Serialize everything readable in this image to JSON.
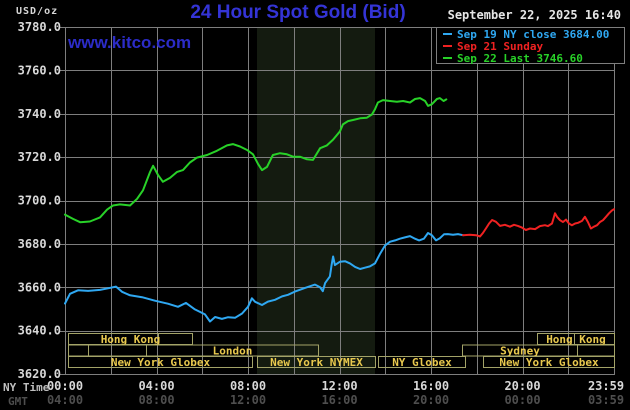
{
  "header": {
    "unit_label": "USD/oz",
    "title": "24 Hour Spot Gold (Bid)",
    "datetime": "September 22, 2025 16:40",
    "watermark": "www.kitco.com"
  },
  "legend": {
    "entries": [
      {
        "label": "Sep 19 NY close 3684.00",
        "color": "#2fa8f2"
      },
      {
        "label": "Sep 21 Sunday",
        "color": "#f02222"
      },
      {
        "label": "Sep 22 Last 3746.60",
        "color": "#28d228"
      }
    ]
  },
  "axes": {
    "y_labels": [
      "3780.0",
      "3760.0",
      "3740.0",
      "3720.0",
      "3700.0",
      "3680.0",
      "3660.0",
      "3640.0",
      "3620.0"
    ],
    "x_row1_label": "NY Time",
    "x_row2_label": "GMT",
    "x_row1_values": [
      "00:00",
      "04:00",
      "08:00",
      "12:00",
      "16:00",
      "20:00",
      "23:59"
    ],
    "x_row2_values": [
      "04:00",
      "08:00",
      "12:00",
      "16:00",
      "20:00",
      "00:00",
      "03:59"
    ]
  },
  "colors": {
    "background": "#000000",
    "grid": "#7e7e7e",
    "highlight_band": "#141b10",
    "session_border": "#a3a368",
    "session_text": "#e9c94e",
    "axis_text": "#d8d8d8",
    "gmt_text": "#4e4e4e"
  },
  "sessions": {
    "rows": [
      {
        "boxes": [
          {
            "label": "Hong Kong",
            "start": 0.13,
            "end": 5.55,
            "dividers": [
              4.07
            ]
          },
          {
            "label": "Hong Kong",
            "start": 20.63,
            "end": 24,
            "dividers": [
              22.25
            ]
          }
        ]
      },
      {
        "boxes": [
          {
            "label": "",
            "start": 0.13,
            "end": 1.01,
            "dividers": []
          },
          {
            "label": "",
            "start": 1.01,
            "end": 3.54,
            "dividers": []
          },
          {
            "label": "London",
            "start": 3.54,
            "end": 11.06,
            "dividers": []
          },
          {
            "label": "Sydney",
            "start": 17.36,
            "end": 22.38,
            "dividers": []
          },
          {
            "label": "",
            "start": 22.38,
            "end": 24,
            "dividers": []
          }
        ]
      },
      {
        "boxes": [
          {
            "label": "New York Globex",
            "start": 0.13,
            "end": 8.17,
            "dividers": []
          },
          {
            "label": "New York NYMEX",
            "start": 8.39,
            "end": 13.55,
            "dividers": []
          },
          {
            "label": "NY Globex",
            "start": 13.68,
            "end": 17.49,
            "dividers": []
          },
          {
            "label": "New York Globex",
            "start": 18.27,
            "end": 24,
            "dividers": []
          }
        ]
      }
    ]
  },
  "chart_data": {
    "type": "line",
    "title": "24 Hour Spot Gold (Bid)",
    "ylabel": "USD/oz",
    "x_unit": "hours_ny_time",
    "x_range": [
      0,
      24
    ],
    "y_range": [
      3620,
      3780
    ],
    "y_tick_step": 20,
    "x_gridline_step_hours": 2,
    "x_label_hours": [
      0,
      4,
      8,
      12,
      16,
      20,
      24
    ],
    "grid": true,
    "legend_position": "top-right",
    "highlight_band_hours": [
      8.39,
      13.55
    ],
    "series": [
      {
        "name": "Sep 19 NY close",
        "color": "#2fa8f2",
        "close": 3684.0,
        "points": [
          [
            0,
            3652.5
          ],
          [
            0.22,
            3657.0
          ],
          [
            0.57,
            3658.6
          ],
          [
            1.01,
            3658.3
          ],
          [
            1.53,
            3658.8
          ],
          [
            1.88,
            3659.5
          ],
          [
            2.23,
            3660.3
          ],
          [
            2.49,
            3657.9
          ],
          [
            2.84,
            3656.3
          ],
          [
            3.37,
            3655.4
          ],
          [
            3.93,
            3653.8
          ],
          [
            4.5,
            3652.4
          ],
          [
            4.94,
            3651.0
          ],
          [
            5.29,
            3652.8
          ],
          [
            5.68,
            3649.8
          ],
          [
            6.12,
            3647.5
          ],
          [
            6.34,
            3644.2
          ],
          [
            6.56,
            3646.3
          ],
          [
            6.86,
            3645.4
          ],
          [
            7.13,
            3646.2
          ],
          [
            7.43,
            3645.9
          ],
          [
            7.74,
            3647.9
          ],
          [
            8.0,
            3651.0
          ],
          [
            8.17,
            3654.9
          ],
          [
            8.31,
            3653.3
          ],
          [
            8.61,
            3651.8
          ],
          [
            8.87,
            3653.4
          ],
          [
            9.18,
            3654.2
          ],
          [
            9.49,
            3655.8
          ],
          [
            9.75,
            3656.5
          ],
          [
            10.05,
            3658.0
          ],
          [
            10.49,
            3659.7
          ],
          [
            10.93,
            3661.2
          ],
          [
            11.15,
            3660.0
          ],
          [
            11.27,
            3658.2
          ],
          [
            11.37,
            3661.9
          ],
          [
            11.58,
            3665.0
          ],
          [
            11.65,
            3670.0
          ],
          [
            11.72,
            3674.2
          ],
          [
            11.8,
            3670.2
          ],
          [
            12.02,
            3671.8
          ],
          [
            12.24,
            3672.0
          ],
          [
            12.46,
            3671.0
          ],
          [
            12.68,
            3669.4
          ],
          [
            12.9,
            3668.4
          ],
          [
            13.11,
            3669.0
          ],
          [
            13.33,
            3669.6
          ],
          [
            13.55,
            3671.0
          ],
          [
            13.77,
            3675.4
          ],
          [
            13.99,
            3679.2
          ],
          [
            14.21,
            3681.0
          ],
          [
            14.43,
            3681.6
          ],
          [
            14.64,
            3682.4
          ],
          [
            14.86,
            3683.0
          ],
          [
            15.08,
            3683.6
          ],
          [
            15.3,
            3682.4
          ],
          [
            15.48,
            3681.6
          ],
          [
            15.69,
            3682.4
          ],
          [
            15.87,
            3685.0
          ],
          [
            16.04,
            3684.0
          ],
          [
            16.22,
            3681.6
          ],
          [
            16.39,
            3682.6
          ],
          [
            16.57,
            3684.4
          ],
          [
            16.74,
            3684.5
          ],
          [
            16.96,
            3684.2
          ],
          [
            17.18,
            3684.5
          ],
          [
            17.4,
            3684.0
          ]
        ]
      },
      {
        "name": "Sep 21 Sunday",
        "color": "#f02222",
        "points": [
          [
            17.4,
            3684.0
          ],
          [
            17.7,
            3684.2
          ],
          [
            17.97,
            3684.0
          ],
          [
            18.14,
            3683.4
          ],
          [
            18.27,
            3685.0
          ],
          [
            18.4,
            3687.1
          ],
          [
            18.54,
            3689.4
          ],
          [
            18.67,
            3691.0
          ],
          [
            18.84,
            3690.2
          ],
          [
            19.02,
            3688.3
          ],
          [
            19.23,
            3688.8
          ],
          [
            19.45,
            3687.9
          ],
          [
            19.63,
            3688.8
          ],
          [
            19.8,
            3688.3
          ],
          [
            19.98,
            3687.5
          ],
          [
            20.15,
            3686.4
          ],
          [
            20.33,
            3687.1
          ],
          [
            20.55,
            3686.8
          ],
          [
            20.76,
            3688.2
          ],
          [
            20.98,
            3688.6
          ],
          [
            21.11,
            3688.2
          ],
          [
            21.29,
            3689.4
          ],
          [
            21.42,
            3694.1
          ],
          [
            21.51,
            3692.5
          ],
          [
            21.64,
            3690.9
          ],
          [
            21.77,
            3690.1
          ],
          [
            21.9,
            3691.2
          ],
          [
            22.03,
            3689.4
          ],
          [
            22.16,
            3688.6
          ],
          [
            22.3,
            3689.4
          ],
          [
            22.43,
            3689.7
          ],
          [
            22.6,
            3690.6
          ],
          [
            22.73,
            3692.5
          ],
          [
            22.86,
            3690.1
          ],
          [
            22.99,
            3687.1
          ],
          [
            23.12,
            3687.9
          ],
          [
            23.26,
            3688.6
          ],
          [
            23.39,
            3690.1
          ],
          [
            23.52,
            3690.9
          ],
          [
            23.65,
            3692.5
          ],
          [
            23.78,
            3694.1
          ],
          [
            23.91,
            3695.4
          ],
          [
            24,
            3696.0
          ]
        ]
      },
      {
        "name": "Sep 22 Last",
        "color": "#28d228",
        "last": 3746.6,
        "points": [
          [
            0,
            3693.5
          ],
          [
            0.35,
            3691.5
          ],
          [
            0.66,
            3690.0
          ],
          [
            1.09,
            3690.3
          ],
          [
            1.53,
            3692.2
          ],
          [
            1.84,
            3695.8
          ],
          [
            2.1,
            3697.7
          ],
          [
            2.4,
            3698.2
          ],
          [
            2.84,
            3697.7
          ],
          [
            3.15,
            3700.8
          ],
          [
            3.41,
            3704.7
          ],
          [
            3.72,
            3713.2
          ],
          [
            3.85,
            3716.0
          ],
          [
            4.07,
            3711.7
          ],
          [
            4.28,
            3708.6
          ],
          [
            4.59,
            3710.4
          ],
          [
            4.9,
            3713.2
          ],
          [
            5.16,
            3714.0
          ],
          [
            5.46,
            3717.5
          ],
          [
            5.77,
            3719.8
          ],
          [
            6.21,
            3721.0
          ],
          [
            6.64,
            3722.9
          ],
          [
            7.08,
            3725.4
          ],
          [
            7.34,
            3726.0
          ],
          [
            7.65,
            3724.9
          ],
          [
            7.96,
            3723.3
          ],
          [
            8.22,
            3721.3
          ],
          [
            8.44,
            3716.8
          ],
          [
            8.61,
            3714.0
          ],
          [
            8.83,
            3715.5
          ],
          [
            9.09,
            3721.0
          ],
          [
            9.4,
            3721.8
          ],
          [
            9.7,
            3721.3
          ],
          [
            9.97,
            3720.2
          ],
          [
            10.27,
            3720.2
          ],
          [
            10.58,
            3719.0
          ],
          [
            10.84,
            3718.7
          ],
          [
            11.15,
            3724.1
          ],
          [
            11.45,
            3725.4
          ],
          [
            11.72,
            3728.1
          ],
          [
            12.02,
            3731.9
          ],
          [
            12.15,
            3735.1
          ],
          [
            12.37,
            3736.6
          ],
          [
            12.59,
            3737.1
          ],
          [
            12.9,
            3737.9
          ],
          [
            13.2,
            3738.2
          ],
          [
            13.42,
            3739.7
          ],
          [
            13.55,
            3742.1
          ],
          [
            13.68,
            3745.2
          ],
          [
            13.9,
            3746.3
          ],
          [
            14.21,
            3745.9
          ],
          [
            14.51,
            3745.5
          ],
          [
            14.78,
            3745.9
          ],
          [
            15.08,
            3745.2
          ],
          [
            15.3,
            3746.8
          ],
          [
            15.52,
            3747.2
          ],
          [
            15.74,
            3745.9
          ],
          [
            15.87,
            3743.6
          ],
          [
            16.04,
            3744.4
          ],
          [
            16.26,
            3746.8
          ],
          [
            16.39,
            3747.2
          ],
          [
            16.55,
            3745.9
          ],
          [
            16.67,
            3746.6
          ]
        ]
      }
    ]
  }
}
